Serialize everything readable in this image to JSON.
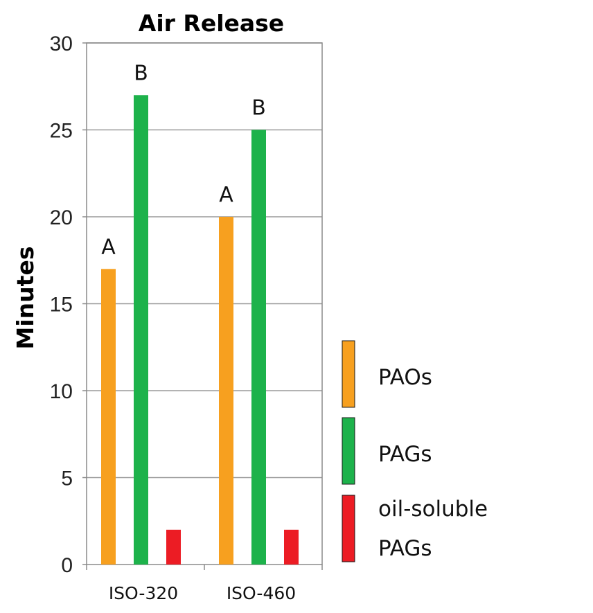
{
  "chart_data": {
    "type": "bar",
    "title": "Air Release",
    "xlabel": "",
    "ylabel": "Minutes",
    "ylim": [
      0,
      30
    ],
    "yticks": [
      0,
      5,
      10,
      15,
      20,
      25,
      30
    ],
    "grid": true,
    "legend_position": "right",
    "categories": [
      "ISO-320",
      "ISO-460"
    ],
    "series": [
      {
        "name": "PAOs",
        "color": "#F7A01F",
        "values": [
          17,
          20
        ],
        "labels": [
          "A",
          "A"
        ]
      },
      {
        "name": "PAGs",
        "color": "#1DB24B",
        "values": [
          27,
          25
        ],
        "labels": [
          "B",
          "B"
        ]
      },
      {
        "name": "oil-soluble PAGs",
        "name_lines": [
          "oil-soluble",
          "PAGs"
        ],
        "color": "#EC1C24",
        "values": [
          2,
          2
        ],
        "labels": [
          "",
          ""
        ]
      }
    ]
  }
}
